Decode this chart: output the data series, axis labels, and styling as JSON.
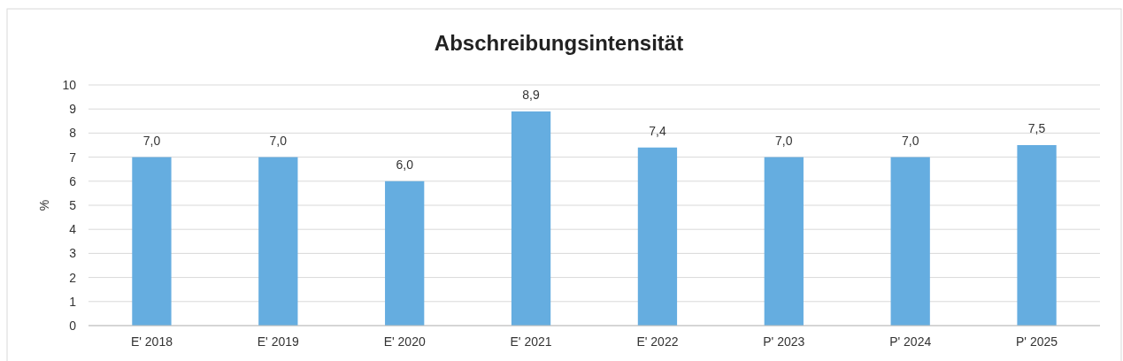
{
  "chart_data": {
    "type": "bar",
    "title": "Abschreibungsintensität",
    "ylabel": "%",
    "categories": [
      "E' 2018",
      "E' 2019",
      "E' 2020",
      "E' 2021",
      "E' 2022",
      "P' 2023",
      "P' 2024",
      "P' 2025"
    ],
    "values": [
      7.0,
      7.0,
      6.0,
      8.9,
      7.4,
      7.0,
      7.0,
      7.5
    ],
    "value_labels": [
      "7,0",
      "7,0",
      "6,0",
      "8,9",
      "7,4",
      "7,0",
      "7,0",
      "7,5"
    ],
    "color": "#65ade0",
    "ylim": [
      0,
      10
    ],
    "yticks": [
      0,
      1,
      2,
      3,
      4,
      5,
      6,
      7,
      8,
      9,
      10
    ],
    "grid": "y"
  }
}
